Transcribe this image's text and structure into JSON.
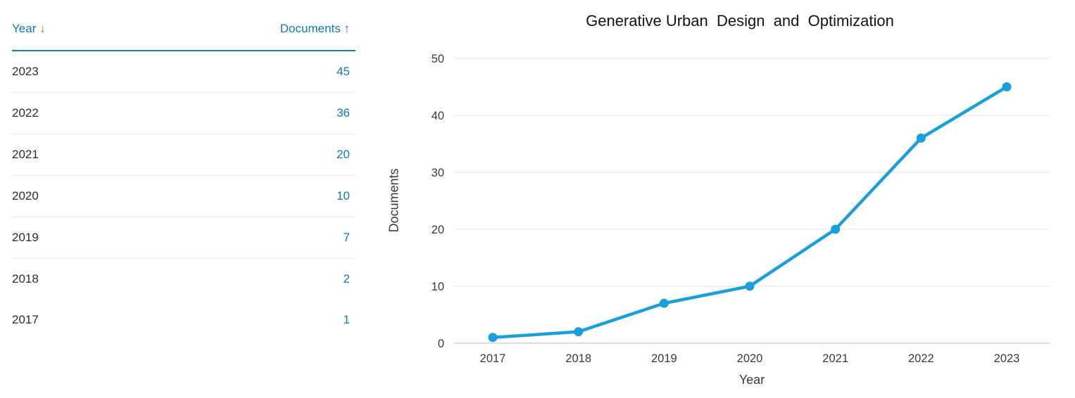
{
  "table": {
    "headers": {
      "year_label": "Year",
      "year_sort_icon": "↓",
      "documents_label": "Documents",
      "documents_sort_icon": "↑"
    },
    "rows": [
      {
        "year": "2023",
        "documents": "45"
      },
      {
        "year": "2022",
        "documents": "36"
      },
      {
        "year": "2021",
        "documents": "20"
      },
      {
        "year": "2020",
        "documents": "10"
      },
      {
        "year": "2019",
        "documents": "7"
      },
      {
        "year": "2018",
        "documents": "2"
      },
      {
        "year": "2017",
        "documents": "1"
      }
    ]
  },
  "chart_data": {
    "type": "line",
    "title": "Generative Urban  Design  and  Optimization",
    "xlabel": "Year",
    "ylabel": "Documents",
    "x": [
      "2017",
      "2018",
      "2019",
      "2020",
      "2021",
      "2022",
      "2023"
    ],
    "series": [
      {
        "name": "Documents",
        "values": [
          1,
          2,
          7,
          10,
          20,
          36,
          45
        ]
      }
    ],
    "ylim": [
      0,
      50
    ],
    "yticks": [
      0,
      10,
      20,
      30,
      40,
      50
    ],
    "grid": "horizontal",
    "legend": "none"
  },
  "colors": {
    "link_blue": "#0e7cb0",
    "sort_arrow_orange": "#e8711f",
    "header_rule_blue": "#2578a0",
    "row_divider": "#ececec",
    "year_text": "#2d2d2d",
    "chart_line": "#1b9fd9",
    "gridline": "#e5e5e5",
    "axis_line": "#c9d0e3",
    "tick_text": "#3a3a3a",
    "title_text": "#141414"
  }
}
